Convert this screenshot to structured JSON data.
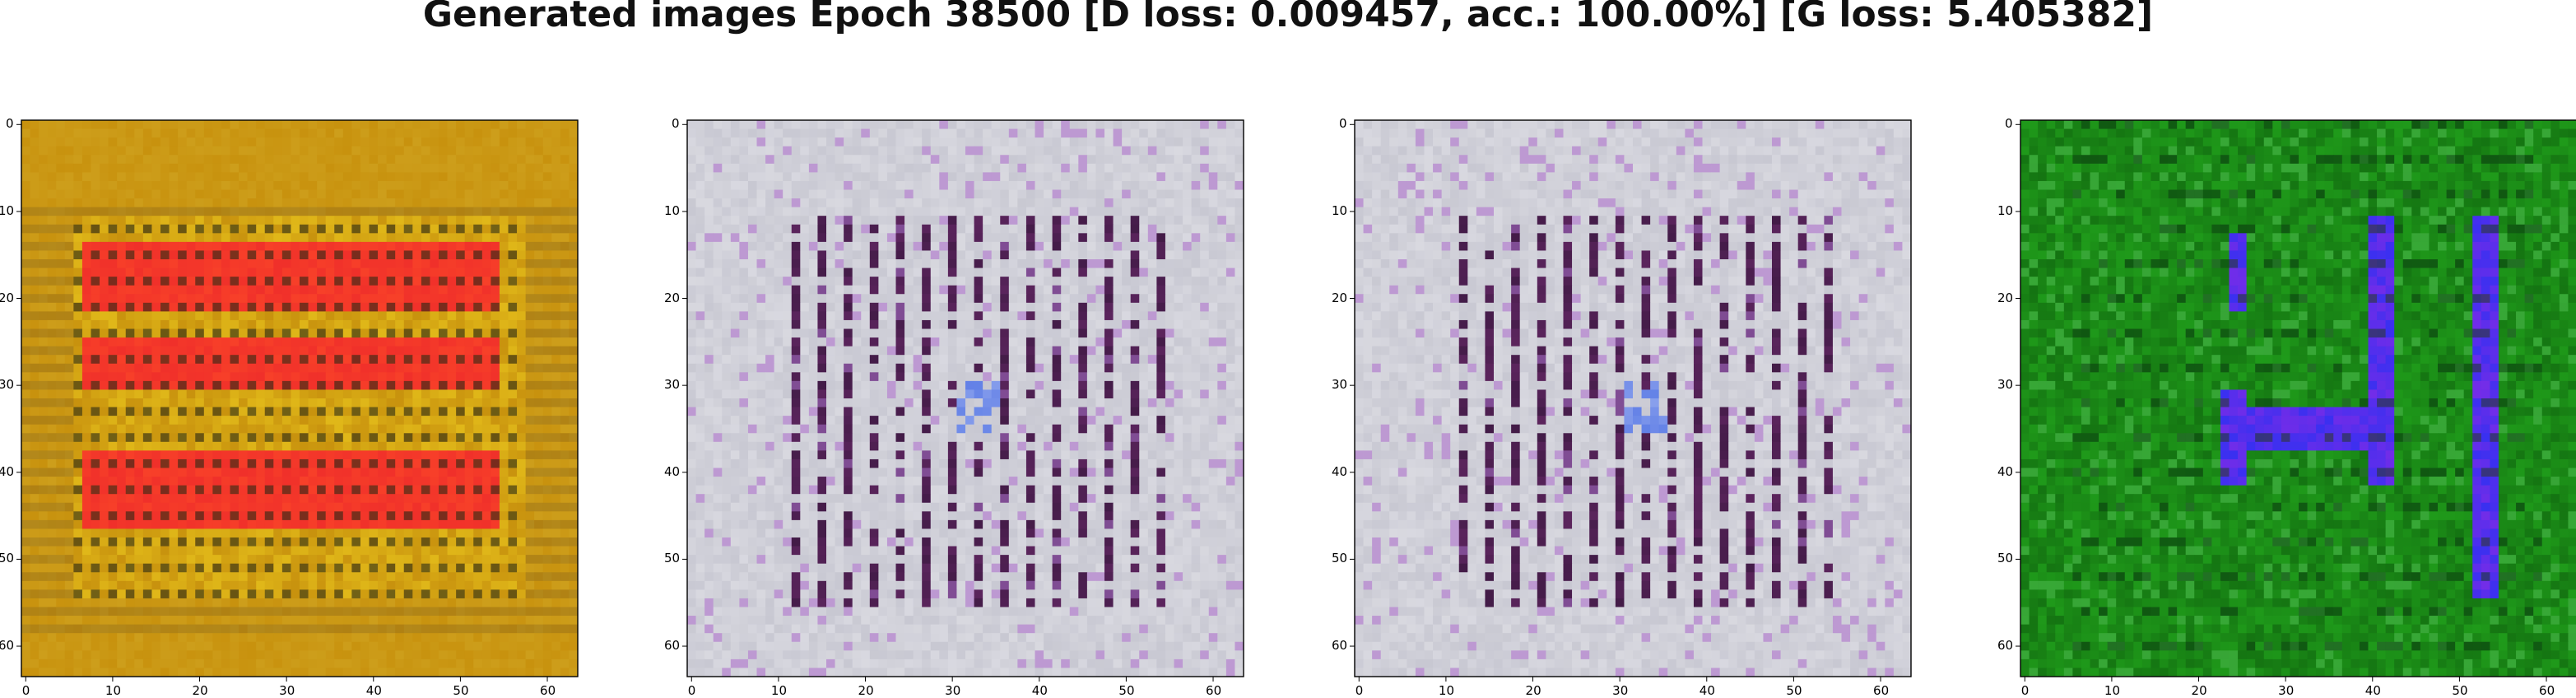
{
  "figure": {
    "title": "Generated images Epoch 38500 [D loss: 0.009457, acc.: 100.00%] [G loss: 5.405382]"
  },
  "axes": {
    "x_ticks": [
      "0",
      "10",
      "20",
      "30",
      "40",
      "50",
      "60"
    ],
    "y_ticks": [
      "0",
      "10",
      "20",
      "30",
      "40",
      "50",
      "60"
    ],
    "range": [
      0,
      64
    ]
  },
  "panels": [
    {
      "id": "panel-1",
      "description_color_theme": "orange-red",
      "base_color": "#c8920e",
      "accent_color": "#f0302a",
      "secondary_color": "#f0d020"
    },
    {
      "id": "panel-2",
      "description_color_theme": "gray-lilac",
      "base_color": "#c8c8d2",
      "accent_color": "#6a2a6a",
      "secondary_color": "#3a60e0"
    },
    {
      "id": "panel-3",
      "description_color_theme": "gray-lilac",
      "base_color": "#c8c8d2",
      "accent_color": "#6a2a6a",
      "secondary_color": "#3a60e0"
    },
    {
      "id": "panel-4",
      "description_color_theme": "green-blue",
      "base_color": "#1f9a1a",
      "accent_color": "#3a30f0",
      "secondary_color": "#0a3a10"
    }
  ]
}
